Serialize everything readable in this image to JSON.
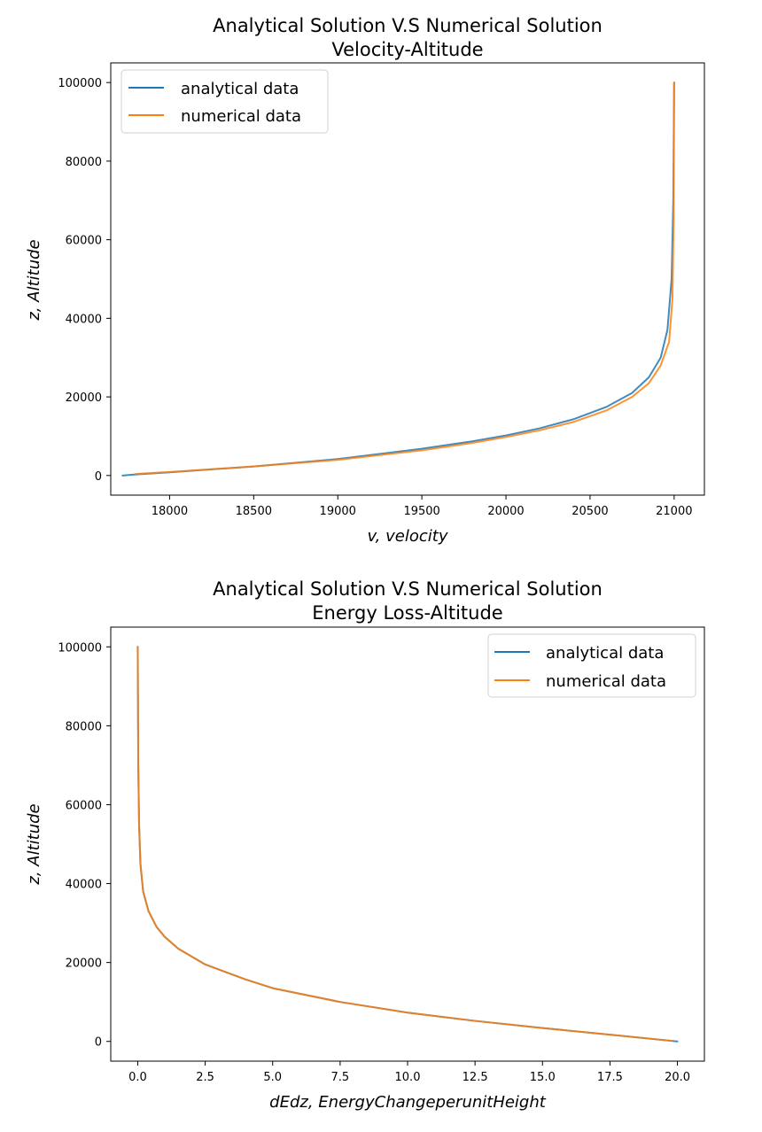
{
  "colors": {
    "analytical": "#1f77b4",
    "numerical": "#ff7f0e"
  },
  "chart_data": [
    {
      "type": "line",
      "title": "Analytical Solution V.S Numerical Solution",
      "subtitle": "Velocity-Altitude",
      "xlabel": "v, velocity",
      "ylabel": "z, Altitude",
      "xlim": [
        17650,
        21180
      ],
      "ylim": [
        -5000,
        105000
      ],
      "xticks": [
        18000,
        18500,
        19000,
        19500,
        20000,
        20500,
        21000
      ],
      "yticks": [
        0,
        20000,
        40000,
        60000,
        80000,
        100000
      ],
      "grid": false,
      "legend_placement": "top-left",
      "series": [
        {
          "name": "analytical data",
          "color_key": "analytical",
          "points": [
            [
              17720,
              0
            ],
            [
              17780,
              200
            ],
            [
              18000,
              800
            ],
            [
              18500,
              2300
            ],
            [
              19000,
              4200
            ],
            [
              19500,
              6800
            ],
            [
              19800,
              8700
            ],
            [
              20000,
              10200
            ],
            [
              20200,
              12000
            ],
            [
              20400,
              14300
            ],
            [
              20600,
              17500
            ],
            [
              20750,
              21000
            ],
            [
              20850,
              25000
            ],
            [
              20920,
              30000
            ],
            [
              20960,
              37000
            ],
            [
              20985,
              50000
            ],
            [
              20995,
              70000
            ],
            [
              21000,
              100000
            ]
          ]
        },
        {
          "name": "numerical data",
          "color_key": "numerical",
          "points": [
            [
              17800,
              400
            ],
            [
              18000,
              900
            ],
            [
              18500,
              2300
            ],
            [
              19000,
              4000
            ],
            [
              19500,
              6400
            ],
            [
              19800,
              8300
            ],
            [
              20000,
              9800
            ],
            [
              20200,
              11500
            ],
            [
              20400,
              13600
            ],
            [
              20600,
              16600
            ],
            [
              20750,
              20000
            ],
            [
              20850,
              23500
            ],
            [
              20920,
              28000
            ],
            [
              20970,
              34000
            ],
            [
              20990,
              45000
            ],
            [
              20997,
              65000
            ],
            [
              21000,
              100000
            ]
          ]
        }
      ]
    },
    {
      "type": "line",
      "title": "Analytical Solution V.S Numerical Solution",
      "subtitle": "Energy Loss-Altitude",
      "xlabel": "dEdz, EnergyChangeperunitHeight",
      "ylabel": "z, Altitude",
      "xlim": [
        -1,
        21
      ],
      "ylim": [
        -5000,
        105000
      ],
      "xticks": [
        "0.0",
        "2.5",
        "5.0",
        "7.5",
        "10.0",
        "12.5",
        "15.0",
        "17.5",
        "20.0"
      ],
      "yticks": [
        0,
        20000,
        40000,
        60000,
        80000,
        100000
      ],
      "grid": false,
      "legend_placement": "top-right",
      "series": [
        {
          "name": "analytical data",
          "color_key": "analytical",
          "points": [
            [
              0.0,
              100000
            ],
            [
              0.02,
              70000
            ],
            [
              0.05,
              55000
            ],
            [
              0.1,
              45000
            ],
            [
              0.2,
              38000
            ],
            [
              0.4,
              33000
            ],
            [
              0.7,
              29000
            ],
            [
              1.0,
              26500
            ],
            [
              1.5,
              23500
            ],
            [
              2.5,
              19500
            ],
            [
              4.0,
              15700
            ],
            [
              5.0,
              13500
            ],
            [
              7.5,
              10000
            ],
            [
              10.0,
              7300
            ],
            [
              12.5,
              5200
            ],
            [
              15.0,
              3400
            ],
            [
              17.5,
              1700
            ],
            [
              20.0,
              0
            ]
          ]
        },
        {
          "name": "numerical data",
          "color_key": "numerical",
          "points": [
            [
              0.0,
              100000
            ],
            [
              0.02,
              70000
            ],
            [
              0.05,
              55000
            ],
            [
              0.1,
              45000
            ],
            [
              0.2,
              38000
            ],
            [
              0.4,
              33000
            ],
            [
              0.7,
              29000
            ],
            [
              1.0,
              26500
            ],
            [
              1.5,
              23500
            ],
            [
              2.5,
              19500
            ],
            [
              4.0,
              15700
            ],
            [
              5.0,
              13500
            ],
            [
              7.5,
              10000
            ],
            [
              10.0,
              7300
            ],
            [
              12.5,
              5200
            ],
            [
              15.0,
              3400
            ],
            [
              17.5,
              1700
            ],
            [
              19.8,
              150
            ]
          ]
        }
      ]
    }
  ]
}
